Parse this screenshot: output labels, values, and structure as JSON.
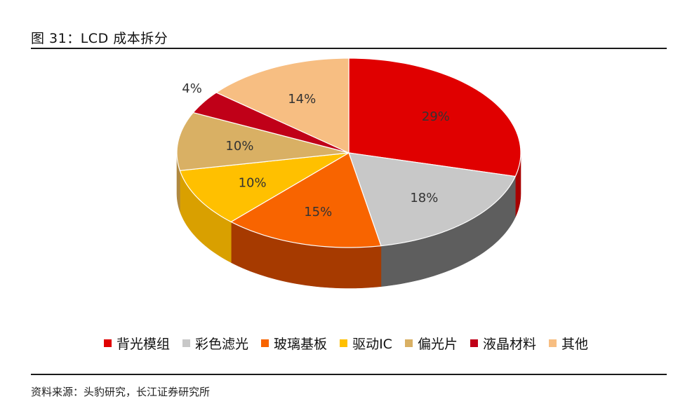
{
  "figure": {
    "title": "图 31：LCD 成本拆分",
    "source": "资料来源：头豹研究，长江证券研究所"
  },
  "chart_data": {
    "type": "pie",
    "title": "",
    "legend_position": "bottom",
    "labels": [
      "背光模组",
      "彩色滤光",
      "玻璃基板",
      "驱动IC",
      "偏光片",
      "液晶材料",
      "其他"
    ],
    "values": [
      29,
      18,
      15,
      10,
      10,
      4,
      14
    ],
    "value_labels": [
      "29%",
      "18%",
      "15%",
      "10%",
      "10%",
      "4%",
      "14%"
    ],
    "colors": [
      "#E00000",
      "#C8C8C8",
      "#F86400",
      "#FFC000",
      "#D9B064",
      "#C00018",
      "#F7BE82"
    ],
    "side_colors": [
      "#A80000",
      "#5E5E5E",
      "#A63A00",
      "#D9A000",
      "#B08840",
      "#7A0010",
      "#D09860"
    ]
  }
}
